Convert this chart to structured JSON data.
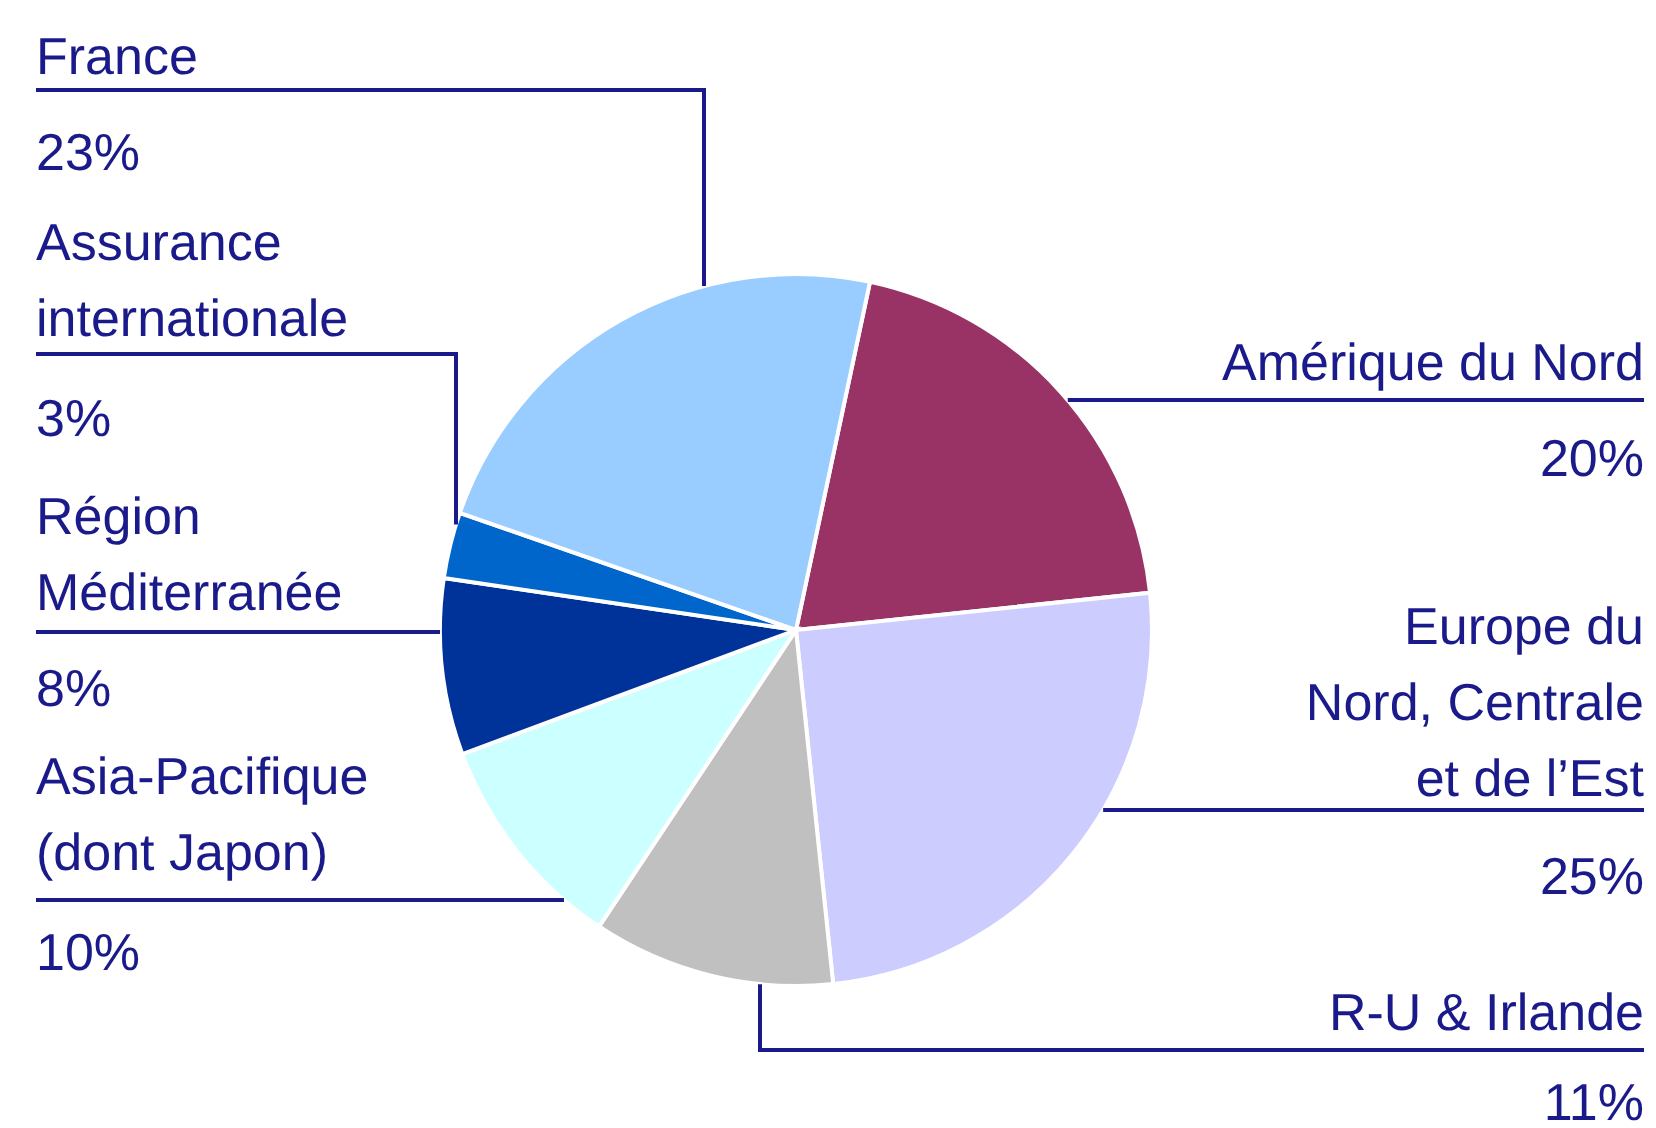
{
  "chart_data": {
    "type": "pie",
    "categories": [
      "Amérique du Nord",
      "Europe du Nord, Centrale et de l’Est",
      "R-U & Irlande",
      "Asia-Pacifique (dont Japon)",
      "Région Méditerranée",
      "Assurance internationale",
      "France"
    ],
    "values": [
      20,
      25,
      11,
      10,
      8,
      3,
      23
    ],
    "colors": [
      "#993366",
      "#ccccff",
      "#c0c0c0",
      "#ccffff",
      "#003399",
      "#0066cc",
      "#99ccff"
    ],
    "value_labels": [
      "20%",
      "25%",
      "11%",
      "10%",
      "8%",
      "3%",
      "23%"
    ]
  }
}
